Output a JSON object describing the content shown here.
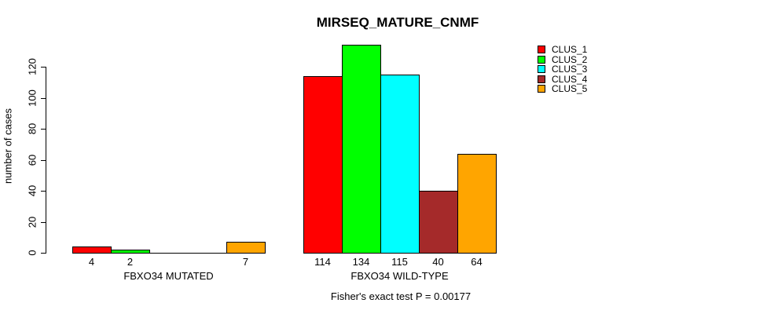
{
  "title": "MIRSEQ_MATURE_CNMF",
  "y_axis_label": "number of cases",
  "footer": "Fisher's exact test P = 0.00177",
  "chart_data": {
    "type": "bar",
    "title": "MIRSEQ_MATURE_CNMF",
    "xlabel": "",
    "ylabel": "number of cases",
    "ylim": [
      0,
      134
    ],
    "yticks": [
      0,
      20,
      40,
      60,
      80,
      100,
      120
    ],
    "grid": false,
    "legend_position": "top-right",
    "categories": [
      "FBXO34 MUTATED",
      "FBXO34 WILD-TYPE"
    ],
    "series": [
      {
        "name": "CLUS_1",
        "color": "#FF0000",
        "values": [
          4,
          114
        ]
      },
      {
        "name": "CLUS_2",
        "color": "#00FF00",
        "values": [
          2,
          134
        ]
      },
      {
        "name": "CLUS_3",
        "color": "#00FFFF",
        "values": [
          0,
          115
        ]
      },
      {
        "name": "CLUS_4",
        "color": "#A52A2A",
        "values": [
          0,
          40
        ]
      },
      {
        "name": "CLUS_5",
        "color": "#FFA500",
        "values": [
          7,
          64
        ]
      }
    ],
    "bar_value_labels_shown": true,
    "zero_value_labels_hidden": true,
    "annotation": "Fisher's exact test P = 0.00177"
  }
}
